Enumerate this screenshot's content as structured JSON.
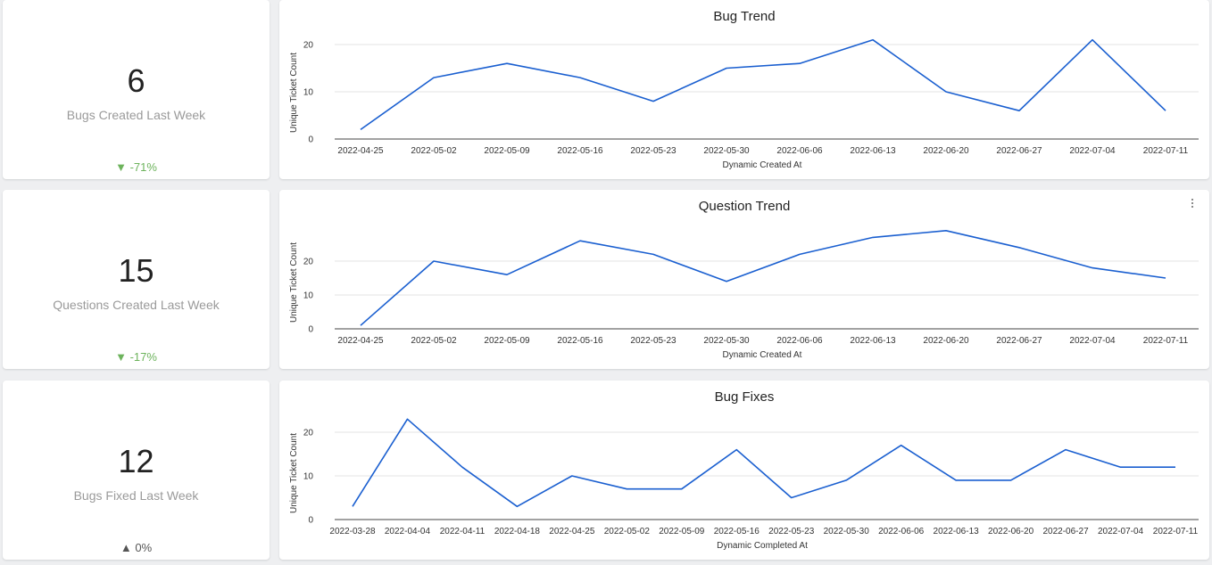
{
  "kpis": [
    {
      "value": "6",
      "label": "Bugs Created Last Week",
      "change": "-71%",
      "arrow": "▼",
      "trend": "down"
    },
    {
      "value": "15",
      "label": "Questions Created Last Week",
      "change": "-17%",
      "arrow": "▼",
      "trend": "down"
    },
    {
      "value": "12",
      "label": "Bugs Fixed Last Week",
      "change": "0%",
      "arrow": "▲",
      "trend": "flat"
    }
  ],
  "colors": {
    "line": "#1a5fd0",
    "grid": "#e3e3e3",
    "axis": "#444444",
    "down": "#6db35c"
  },
  "chart_data": [
    {
      "type": "line",
      "title": "Bug Trend",
      "xlabel": "Dynamic Created At",
      "ylabel": "Unique Ticket Count",
      "categories": [
        "2022-04-25",
        "2022-05-02",
        "2022-05-09",
        "2022-05-16",
        "2022-05-23",
        "2022-05-30",
        "2022-06-06",
        "2022-06-13",
        "2022-06-20",
        "2022-06-27",
        "2022-07-04",
        "2022-07-11"
      ],
      "series": [
        {
          "name": "Unique Ticket Count",
          "values": [
            2,
            13,
            16,
            13,
            8,
            15,
            16,
            21,
            10,
            6,
            21,
            6
          ]
        }
      ],
      "yticks": [
        0,
        10,
        20
      ],
      "ylim": [
        0,
        22
      ]
    },
    {
      "type": "line",
      "title": "Question Trend",
      "xlabel": "Dynamic Created At",
      "ylabel": "Unique Ticket Count",
      "categories": [
        "2022-04-25",
        "2022-05-02",
        "2022-05-09",
        "2022-05-16",
        "2022-05-23",
        "2022-05-30",
        "2022-06-06",
        "2022-06-13",
        "2022-06-20",
        "2022-06-27",
        "2022-07-04",
        "2022-07-11"
      ],
      "series": [
        {
          "name": "Unique Ticket Count",
          "values": [
            1,
            20,
            16,
            26,
            22,
            14,
            22,
            27,
            29,
            24,
            18,
            15
          ]
        }
      ],
      "yticks": [
        0,
        10,
        20
      ],
      "ylim": [
        0,
        30
      ]
    },
    {
      "type": "line",
      "title": "Bug Fixes",
      "xlabel": "Dynamic Completed At",
      "ylabel": "Unique Ticket Count",
      "categories": [
        "2022-03-28",
        "2022-04-04",
        "2022-04-11",
        "2022-04-18",
        "2022-04-25",
        "2022-05-02",
        "2022-05-09",
        "2022-05-16",
        "2022-05-23",
        "2022-05-30",
        "2022-06-06",
        "2022-06-13",
        "2022-06-20",
        "2022-06-27",
        "2022-07-04",
        "2022-07-11"
      ],
      "series": [
        {
          "name": "Unique Ticket Count",
          "values": [
            3,
            23,
            12,
            3,
            10,
            7,
            7,
            16,
            5,
            9,
            17,
            9,
            9,
            16,
            12,
            12
          ]
        }
      ],
      "yticks": [
        0,
        10,
        20
      ],
      "ylim": [
        0,
        25
      ]
    }
  ]
}
